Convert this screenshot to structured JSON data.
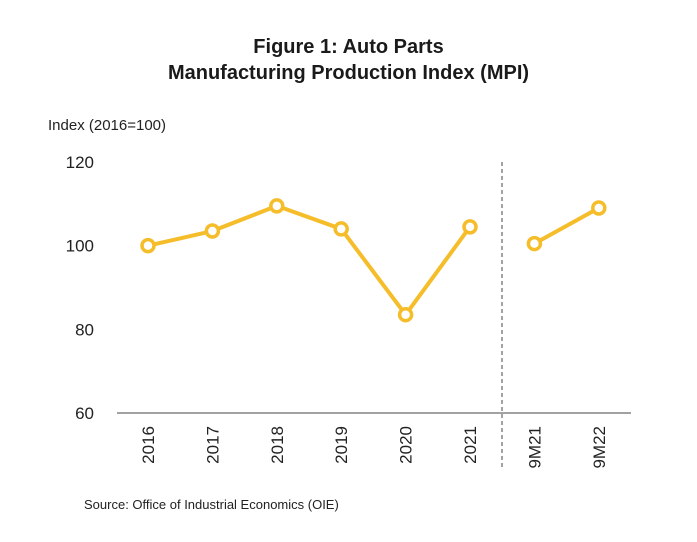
{
  "chart_data": {
    "type": "line",
    "title_line1": "Figure 1: Auto Parts",
    "title_line2": "Manufacturing Production Index (MPI)",
    "ylabel": "Index (2016=100)",
    "xlabel": "",
    "ylim": [
      60,
      120
    ],
    "yticks": [
      60,
      80,
      100,
      120
    ],
    "categories": [
      "2016",
      "2017",
      "2018",
      "2019",
      "2020",
      "2021",
      "9M21",
      "9M22"
    ],
    "segments": [
      {
        "categories": [
          "2016",
          "2017",
          "2018",
          "2019",
          "2020",
          "2021"
        ],
        "values": [
          100,
          103.5,
          109.5,
          104,
          83.5,
          104.5
        ]
      },
      {
        "categories": [
          "9M21",
          "9M22"
        ],
        "values": [
          100.5,
          109
        ]
      }
    ],
    "divider_after": "2021",
    "grid": false,
    "line_color": "#F5BD2A",
    "source": "Source: Office of Industrial Economics (OIE)"
  }
}
